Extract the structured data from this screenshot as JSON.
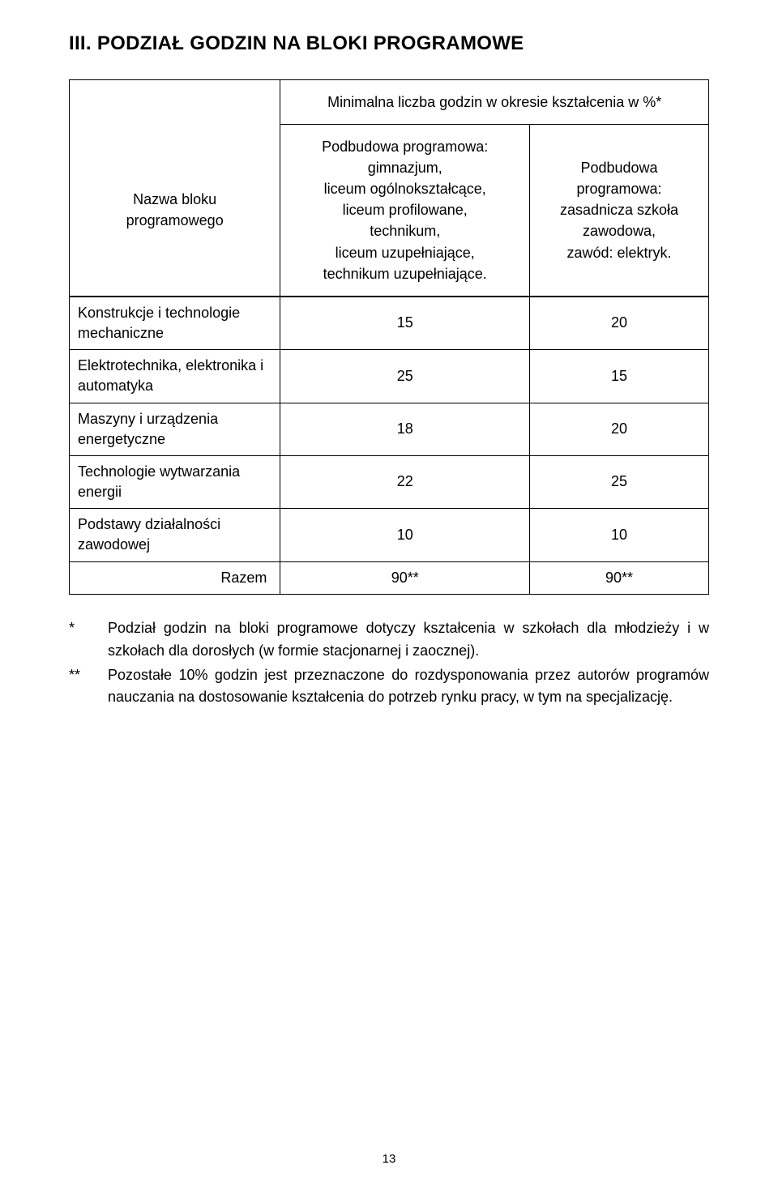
{
  "heading": "III. PODZIAŁ GODZIN NA BLOKI PROGRAMOWE",
  "table": {
    "colgroup_widths_pct": [
      33,
      39,
      28
    ],
    "border_color": "#000000",
    "font_size_pt": 18,
    "header": {
      "top_span_text": "Minimalna liczba godzin w okresie kształcenia w %*",
      "left_label": "Nazwa bloku\nprogramowego",
      "mid_label": "Podbudowa programowa:\ngimnazjum,\nliceum ogólnokształcące,\nliceum profilowane,\ntechnikum,\nliceum uzupełniające,\ntechnikum uzupełniające.",
      "right_label": "Podbudowa\nprogramowa:\nzasadnicza szkoła\nzawodowa,\nzawód: elektryk."
    },
    "rows": [
      {
        "label": "Konstrukcje i technologie mechaniczne",
        "v1": "15",
        "v2": "20"
      },
      {
        "label": "Elektrotechnika, elektronika i automatyka",
        "v1": "25",
        "v2": "15"
      },
      {
        "label": "Maszyny i urządzenia energetyczne",
        "v1": "18",
        "v2": "20"
      },
      {
        "label": "Technologie wytwarzania energii",
        "v1": "22",
        "v2": "25"
      },
      {
        "label": "Podstawy działalności zawodowej",
        "v1": "10",
        "v2": "10"
      }
    ],
    "footer": {
      "label": "Razem",
      "v1": "90**",
      "v2": "90**"
    }
  },
  "notes": {
    "n1_marker": "*",
    "n1_text": "Podział godzin na bloki programowe dotyczy kształcenia w szkołach dla młodzieży i w szkołach dla dorosłych (w formie stacjonarnej i zaocznej).",
    "n2_marker": "**",
    "n2_text": "Pozostałe 10% godzin jest przeznaczone do rozdysponowania przez autorów programów nauczania na dostosowanie kształcenia do potrzeb rynku pracy, w tym na specjalizację."
  },
  "page_number": "13"
}
